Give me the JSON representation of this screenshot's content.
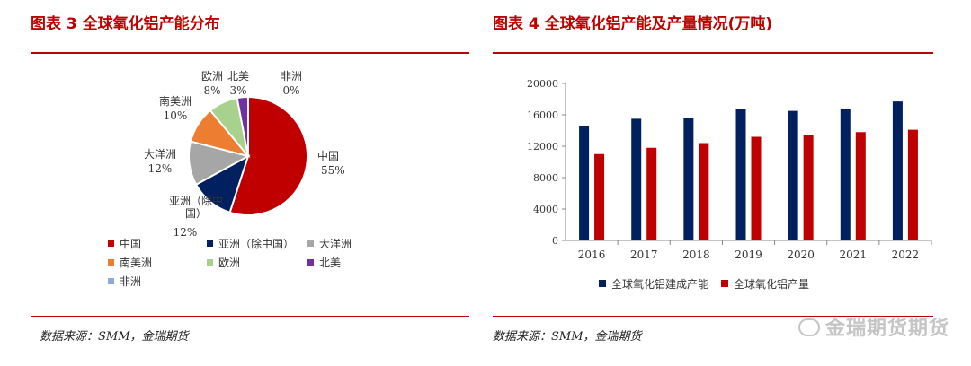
{
  "left": {
    "title": "图表 3  全球氧化铝产能分布",
    "source": "数据来源：SMM，金瑞期货",
    "chart_data": {
      "type": "pie",
      "slices": [
        {
          "label": "中国",
          "value": 55,
          "value_label": "55%",
          "color": "#c00000"
        },
        {
          "label": "亚洲（除中国）",
          "value": 12,
          "value_label": "12%",
          "color": "#002060"
        },
        {
          "label": "大洋洲",
          "value": 12,
          "value_label": "12%",
          "color": "#a6a6a6"
        },
        {
          "label": "南美洲",
          "value": 10,
          "value_label": "10%",
          "color": "#ed7d31"
        },
        {
          "label": "欧洲",
          "value": 8,
          "value_label": "8%",
          "color": "#a9d18e"
        },
        {
          "label": "北美",
          "value": 3,
          "value_label": "3%",
          "color": "#7030a0"
        },
        {
          "label": "非洲",
          "value": 0,
          "value_label": "0%",
          "color": "#8faadc"
        }
      ]
    }
  },
  "right": {
    "title": "图表 4  全球氧化铝产能及产量情况(万吨)",
    "source": "数据来源：SMM，金瑞期货",
    "chart_data": {
      "type": "bar",
      "categories": [
        "2016",
        "2017",
        "2018",
        "2019",
        "2020",
        "2021",
        "2022"
      ],
      "series": [
        {
          "name": "全球氧化铝建成产能",
          "color": "#002060",
          "values": [
            14600,
            15500,
            15600,
            16700,
            16500,
            16700,
            17700
          ]
        },
        {
          "name": "全球氧化铝产量",
          "color": "#c00000",
          "values": [
            11000,
            11800,
            12400,
            13200,
            13400,
            13800,
            14100
          ]
        }
      ],
      "ylim": [
        0,
        20000
      ],
      "yticks": [
        "0",
        "4000",
        "8000",
        "12000",
        "16000",
        "20000"
      ]
    }
  },
  "watermark": "金瑞期货期货"
}
